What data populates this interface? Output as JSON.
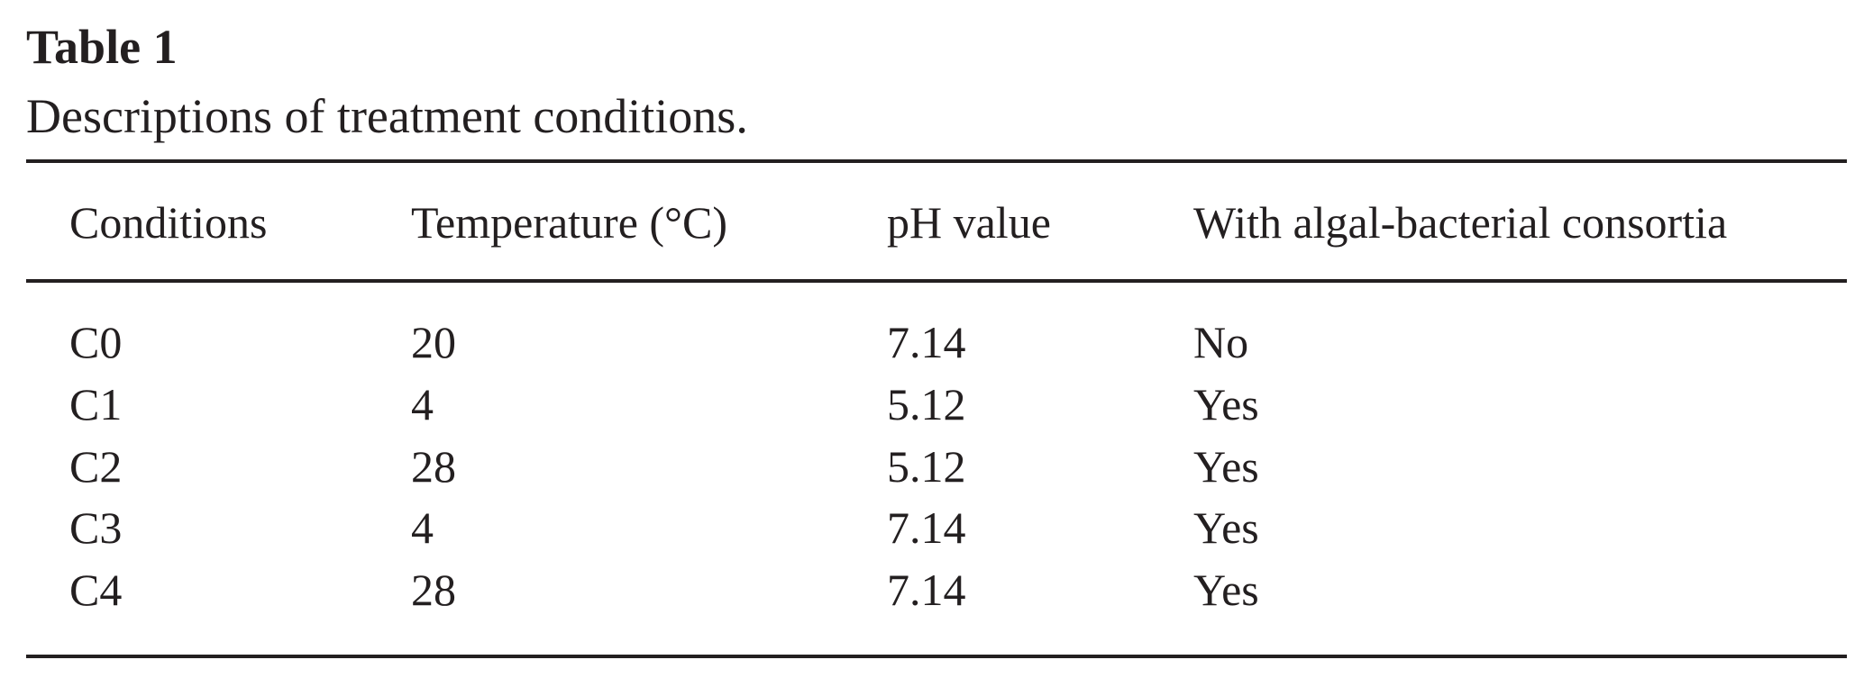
{
  "title": "Table 1",
  "subtitle": "Descriptions of treatment conditions.",
  "table": {
    "header": [
      "Conditions",
      "Temperature (°C)",
      "pH value",
      "With algal-bacterial consortia"
    ],
    "rows": [
      [
        "C0",
        20,
        7.14,
        "No"
      ],
      [
        "C1",
        4,
        5.12,
        "Yes"
      ],
      [
        "C2",
        28,
        5.12,
        "Yes"
      ],
      [
        "C3",
        4,
        7.14,
        "Yes"
      ],
      [
        "C4",
        28,
        7.14,
        "Yes"
      ]
    ]
  }
}
